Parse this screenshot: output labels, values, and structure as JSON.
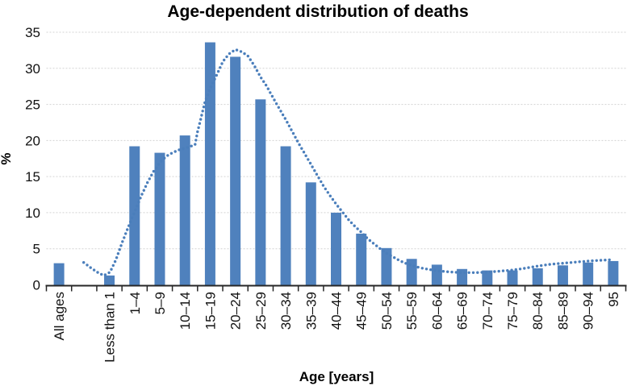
{
  "chart_data": {
    "type": "bar",
    "title": "Age-dependent distribution of deaths",
    "xlabel": "Age [years]",
    "ylabel": "%",
    "categories": [
      "All ages",
      "Less than 1",
      "1–4",
      "5–9",
      "10–14",
      "15–19",
      "20–24",
      "25–29",
      "30–34",
      "35–39",
      "40–44",
      "45–49",
      "50–54",
      "55–59",
      "60–64",
      "65–69",
      "70–74",
      "75–79",
      "80–84",
      "85–89",
      "90–94",
      "95"
    ],
    "values": [
      3.0,
      1.3,
      19.2,
      18.3,
      20.7,
      33.6,
      31.6,
      25.7,
      19.2,
      14.2,
      10.0,
      7.1,
      5.1,
      3.6,
      2.8,
      2.2,
      2.0,
      2.0,
      2.3,
      2.7,
      3.1,
      3.3
    ],
    "spacer_after_index": 0,
    "ylim": [
      0,
      35
    ],
    "yticks": [
      0,
      5,
      10,
      15,
      20,
      25,
      30,
      35
    ],
    "grid": true,
    "legend": "none",
    "bar_color": "#4f81bd",
    "axis_color": "#262626",
    "gridline_color": "#d3d3d3",
    "trend_line": {
      "style": "dotted",
      "color": "#4a7ebb",
      "description": "dotted smoothed trend curve over age-specific bars",
      "points_slot_units": [
        [
          1.48,
          3.1
        ],
        [
          1.75,
          2.4
        ],
        [
          2.02,
          1.75
        ],
        [
          2.28,
          1.3
        ],
        [
          2.52,
          1.75
        ],
        [
          2.75,
          3.4
        ],
        [
          3.0,
          5.8
        ],
        [
          3.25,
          8.0
        ],
        [
          3.5,
          10.1
        ],
        [
          3.75,
          12.2
        ],
        [
          4.0,
          14.1
        ],
        [
          4.25,
          15.7
        ],
        [
          4.5,
          16.9
        ],
        [
          4.75,
          17.8
        ],
        [
          5.0,
          18.3
        ],
        [
          5.3,
          18.75
        ],
        [
          5.6,
          19.05
        ],
        [
          5.9,
          19.4
        ],
        [
          6.0,
          21.2
        ],
        [
          6.15,
          23.3
        ],
        [
          6.3,
          25.4
        ],
        [
          6.5,
          27.2
        ],
        [
          6.75,
          29.0
        ],
        [
          7.0,
          30.9
        ],
        [
          7.25,
          32.0
        ],
        [
          7.5,
          32.6
        ],
        [
          7.75,
          32.3
        ],
        [
          8.0,
          31.7
        ],
        [
          8.25,
          30.4
        ],
        [
          8.5,
          28.8
        ],
        [
          8.75,
          27.5
        ],
        [
          9.0,
          25.9
        ],
        [
          9.25,
          24.4
        ],
        [
          9.5,
          22.9
        ],
        [
          9.75,
          21.3
        ],
        [
          10.0,
          19.7
        ],
        [
          10.25,
          18.2
        ],
        [
          10.5,
          16.7
        ],
        [
          10.75,
          15.2
        ],
        [
          11.0,
          13.7
        ],
        [
          11.25,
          12.4
        ],
        [
          11.5,
          11.2
        ],
        [
          11.75,
          10.1
        ],
        [
          12.0,
          9.0
        ],
        [
          12.25,
          8.1
        ],
        [
          12.5,
          7.3
        ],
        [
          12.75,
          6.4
        ],
        [
          13.0,
          5.7
        ],
        [
          13.25,
          5.0
        ],
        [
          13.5,
          4.4
        ],
        [
          13.75,
          3.9
        ],
        [
          14.0,
          3.4
        ],
        [
          14.25,
          3.0
        ],
        [
          14.5,
          2.7
        ],
        [
          14.75,
          2.45
        ],
        [
          15.0,
          2.25
        ],
        [
          15.5,
          1.95
        ],
        [
          16.0,
          1.8
        ],
        [
          16.5,
          1.7
        ],
        [
          17.0,
          1.7
        ],
        [
          17.5,
          1.75
        ],
        [
          18.0,
          1.9
        ],
        [
          18.5,
          2.05
        ],
        [
          19.0,
          2.3
        ],
        [
          19.5,
          2.6
        ],
        [
          20.0,
          2.85
        ],
        [
          20.5,
          3.0
        ],
        [
          21.0,
          3.15
        ],
        [
          21.5,
          3.3
        ],
        [
          22.0,
          3.4
        ],
        [
          22.5,
          3.5
        ]
      ]
    }
  }
}
